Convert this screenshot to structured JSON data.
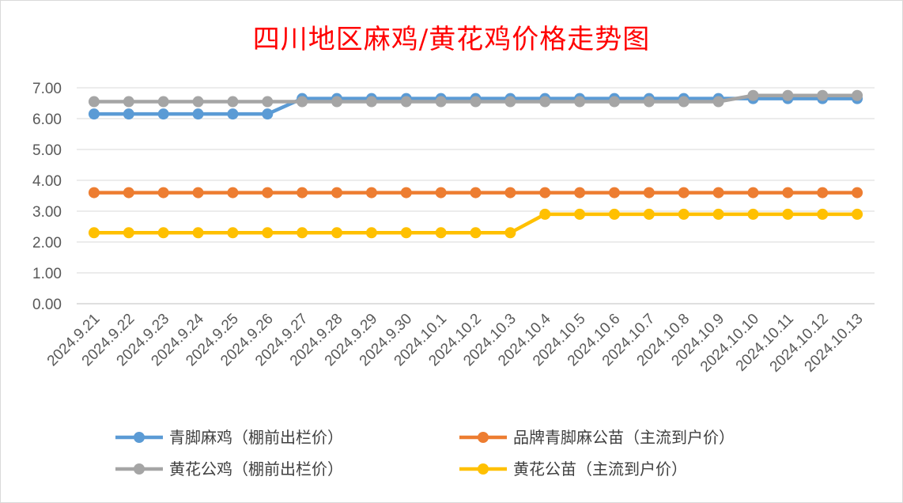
{
  "chart_data": {
    "type": "line",
    "title": "四川地区麻鸡/黄花鸡价格走势图",
    "xlabel": "",
    "ylabel": "",
    "ylim": [
      0,
      7
    ],
    "y_ticks": [
      "0.00",
      "1.00",
      "2.00",
      "3.00",
      "4.00",
      "5.00",
      "6.00",
      "7.00"
    ],
    "grid": true,
    "legend_position": "bottom",
    "categories": [
      "2024.9.21",
      "2024.9.22",
      "2024.9.23",
      "2024.9.24",
      "2024.9.25",
      "2024.9.26",
      "2024.9.27",
      "2024.9.28",
      "2024.9.29",
      "2024.9.30",
      "2024.10.1",
      "2024.10.2",
      "2024.10.3",
      "2024.10.4",
      "2024.10.5",
      "2024.10.6",
      "2024.10.7",
      "2024.10.8",
      "2024.10.9",
      "2024.10.10",
      "2024.10.11",
      "2024.10.12",
      "2024.10.13"
    ],
    "series": [
      {
        "name": "青脚麻鸡（棚前出栏价）",
        "color": "#5b9bd5",
        "values": [
          6.15,
          6.15,
          6.15,
          6.15,
          6.15,
          6.15,
          6.65,
          6.65,
          6.65,
          6.65,
          6.65,
          6.65,
          6.65,
          6.65,
          6.65,
          6.65,
          6.65,
          6.65,
          6.65,
          6.65,
          6.65,
          6.65,
          6.65
        ]
      },
      {
        "name": "品牌青脚麻公苗（主流到户价）",
        "color": "#ed7d31",
        "values": [
          3.6,
          3.6,
          3.6,
          3.6,
          3.6,
          3.6,
          3.6,
          3.6,
          3.6,
          3.6,
          3.6,
          3.6,
          3.6,
          3.6,
          3.6,
          3.6,
          3.6,
          3.6,
          3.6,
          3.6,
          3.6,
          3.6,
          3.6
        ]
      },
      {
        "name": "黄花公鸡（棚前出栏价）",
        "color": "#a5a5a5",
        "values": [
          6.55,
          6.55,
          6.55,
          6.55,
          6.55,
          6.55,
          6.55,
          6.55,
          6.55,
          6.55,
          6.55,
          6.55,
          6.55,
          6.55,
          6.55,
          6.55,
          6.55,
          6.55,
          6.55,
          6.75,
          6.75,
          6.75,
          6.75
        ]
      },
      {
        "name": "黄花公苗（主流到户价）",
        "color": "#ffc000",
        "values": [
          2.3,
          2.3,
          2.3,
          2.3,
          2.3,
          2.3,
          2.3,
          2.3,
          2.3,
          2.3,
          2.3,
          2.3,
          2.3,
          2.9,
          2.9,
          2.9,
          2.9,
          2.9,
          2.9,
          2.9,
          2.9,
          2.9,
          2.9
        ]
      }
    ]
  }
}
